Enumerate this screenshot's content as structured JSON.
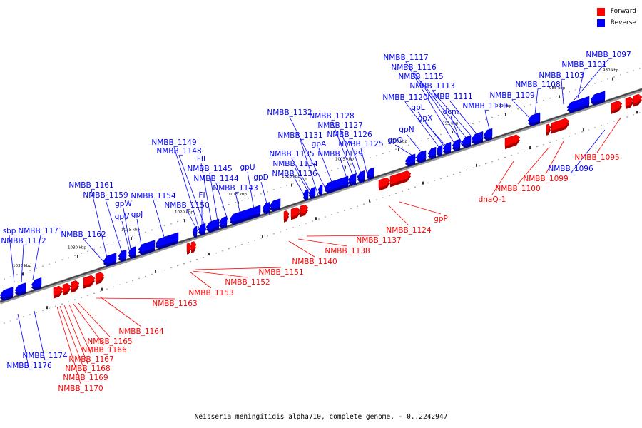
{
  "legend": {
    "items": [
      {
        "label": "Forward",
        "color": "#ff0000"
      },
      {
        "label": "Reverse",
        "color": "#0000ff"
      }
    ]
  },
  "caption": "Neisseria meningitidis alpha710, complete genome. - 0..2242947",
  "axis_ticks": [
    "980 kbp",
    "985 kbp",
    "990 kbp",
    "995 kbp",
    "1000 kbp",
    "1005 kbp",
    "1010 kbp",
    "1015 kbp",
    "1020 kbp",
    "1025 kbp",
    "1030 kbp",
    "1035 kbp"
  ],
  "reverse_labels": [
    "NMBB_1097",
    "NMBB_1101",
    "NMBB_1103",
    "NMBB_1108",
    "NMBB_1109",
    "NMBB_1110",
    "NMBB_1111",
    "NMBB_1113",
    "NMBB_1115",
    "NMBB_1116",
    "NMBB_1117",
    "NMBB_1120",
    "gpL",
    "gpX",
    "dcm",
    "gpN",
    "gpO",
    "NMBB_1125",
    "NMBB_1126",
    "NMBB_1127",
    "NMBB_1128",
    "NMBB_1129",
    "NMBB_1131",
    "NMBB_1132",
    "gpA",
    "NMBB_1134",
    "NMBB_1135",
    "NMBB_1136",
    "gpU",
    "gpD",
    "NMBB_1143",
    "NMBB_1144",
    "NMBB_1145",
    "FII",
    "NMBB_1148",
    "NMBB_1149",
    "FI",
    "NMBB_1150",
    "NMBB_1154",
    "gpJ",
    "gpV",
    "gpW",
    "NMBB_1159",
    "NMBB_1161",
    "NMBB_1162",
    "sbp",
    "NMBB_1171",
    "NMBB_1172",
    "NMBB_1174",
    "NMBB_1176",
    "NMBB_1096"
  ],
  "forward_labels": [
    "NMBB_1095",
    "NMBB_1099",
    "NMBB_1100",
    "dnaQ-1",
    "gpP",
    "NMBB_1124",
    "NMBB_1137",
    "NMBB_1138",
    "NMBB_1140",
    "NMBB_1151",
    "NMBB_1152",
    "NMBB_1153",
    "NMBB_1163",
    "NMBB_1164",
    "NMBB_1165",
    "NMBB_1166",
    "NMBB_1167",
    "NMBB_1168",
    "NMBB_1169",
    "NMBB_1170"
  ]
}
